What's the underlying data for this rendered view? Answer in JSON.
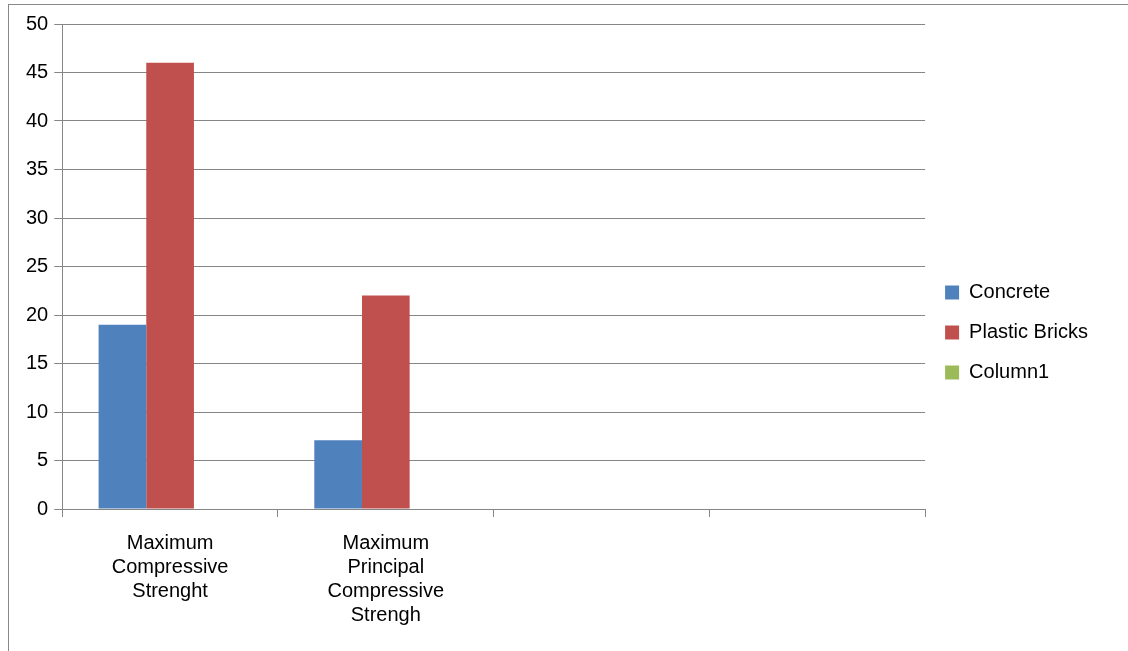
{
  "chart_data": {
    "type": "bar",
    "categories": [
      "Maximum Compressive Strenght",
      "Maximum Principal Compressive Strengh",
      null,
      null
    ],
    "series": [
      {
        "name": "Concrete",
        "color": "#4f81bd",
        "values": [
          19,
          7.1,
          null,
          null
        ]
      },
      {
        "name": "Plastic Bricks",
        "color": "#c0504d",
        "values": [
          46,
          22,
          null,
          null
        ]
      },
      {
        "name": "Column1",
        "color": "#9bbb59",
        "values": [
          null,
          null,
          null,
          null
        ]
      }
    ],
    "ylim": [
      0,
      50
    ],
    "yticks": [
      0,
      5,
      10,
      15,
      20,
      25,
      30,
      35,
      40,
      45,
      50
    ],
    "grid": "y",
    "legend": "right"
  }
}
